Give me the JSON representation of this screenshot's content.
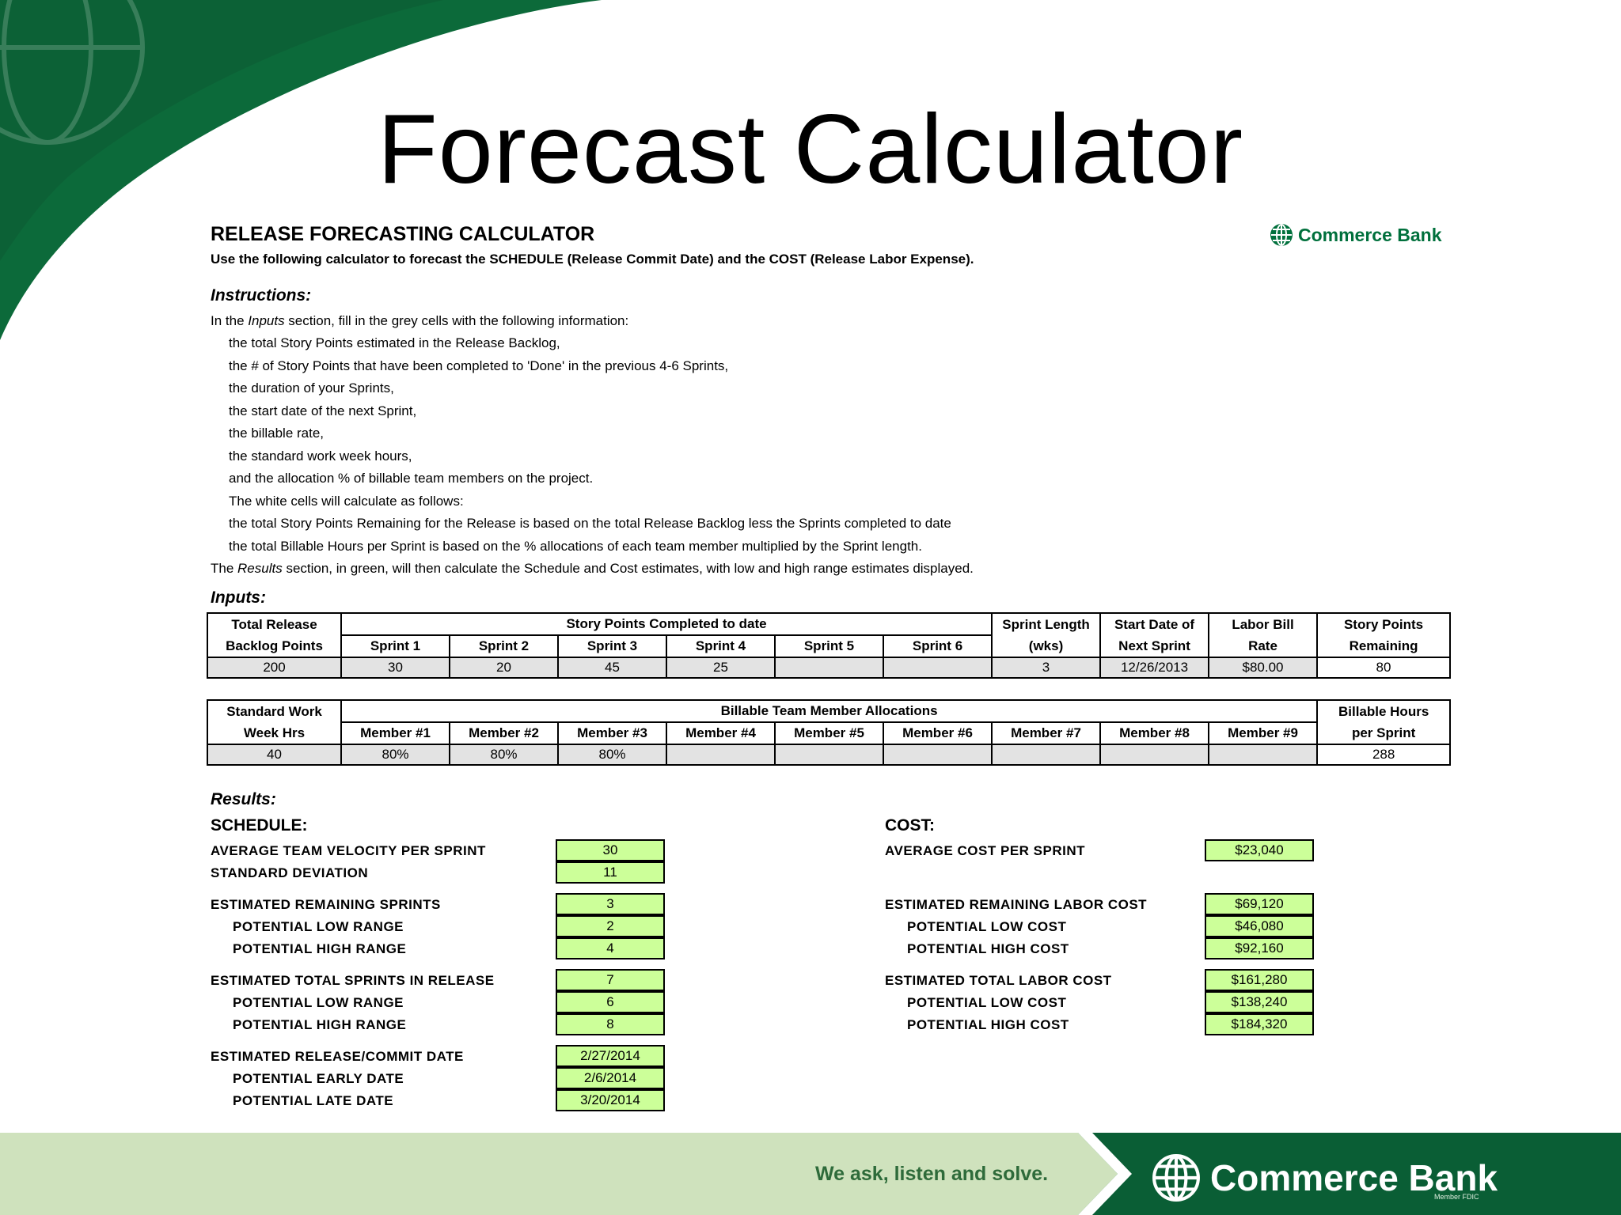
{
  "slide_title": "Forecast Calculator",
  "calculator": {
    "title": "RELEASE FORECASTING CALCULATOR",
    "subtitle": "Use the following calculator to forecast the SCHEDULE (Release Commit Date) and the COST (Release Labor Expense).",
    "logo_text": "Commerce Bank"
  },
  "instructions": {
    "heading": "Instructions:",
    "intro_prefix": "In the ",
    "intro_italic": "Inputs",
    "intro_suffix": " section, fill in the grey cells with the following information:",
    "lines": [
      "the total Story Points estimated in the Release Backlog,",
      "the # of Story Points that have been completed to 'Done' in the previous 4-6 Sprints,",
      "the duration of your Sprints,",
      "the start date of the next Sprint,",
      "the billable rate,",
      "the standard work week hours,",
      "and the allocation % of billable team members on the project.",
      "The white cells will calculate as follows:",
      "the total Story Points Remaining for the Release is based on the total Release Backlog less the Sprints completed to date",
      "the total Billable Hours per Sprint is based on the % allocations of each team member multiplied by the Sprint length."
    ],
    "results_prefix": "The ",
    "results_italic": "Results",
    "results_suffix": " section, in green, will then calculate the Schedule and Cost estimates, with low and high range estimates displayed."
  },
  "inputs": {
    "heading": "Inputs:",
    "table1": {
      "h_total_1": "Total Release",
      "h_total_2": "Backlog Points",
      "h_completed": "Story Points Completed to date",
      "sprints": [
        "Sprint 1",
        "Sprint 2",
        "Sprint 3",
        "Sprint 4",
        "Sprint 5",
        "Sprint 6"
      ],
      "h_length_1": "Sprint Length",
      "h_length_2": "(wks)",
      "h_start_1": "Start Date of",
      "h_start_2": "Next Sprint",
      "h_rate_1": "Labor Bill",
      "h_rate_2": "Rate",
      "h_remaining_1": "Story Points",
      "h_remaining_2": "Remaining",
      "values": {
        "total": "200",
        "sprints": [
          "30",
          "20",
          "45",
          "25",
          "",
          ""
        ],
        "length": "3",
        "start": "12/26/2013",
        "rate": "$80.00",
        "remaining": "80"
      }
    },
    "table2": {
      "h_week_1": "Standard Work",
      "h_week_2": "Week Hrs",
      "h_alloc": "Billable Team Member Allocations",
      "members": [
        "Member #1",
        "Member #2",
        "Member #3",
        "Member #4",
        "Member #5",
        "Member #6",
        "Member #7",
        "Member #8",
        "Member #9"
      ],
      "h_hours_1": "Billable Hours",
      "h_hours_2": "per Sprint",
      "values": {
        "week": "40",
        "members": [
          "80%",
          "80%",
          "80%",
          "",
          "",
          "",
          "",
          "",
          ""
        ],
        "hours": "288"
      }
    }
  },
  "results": {
    "heading": "Results:",
    "schedule": {
      "heading": "SCHEDULE:",
      "rows": [
        {
          "label": "AVERAGE TEAM VELOCITY PER SPRINT",
          "value": "30"
        },
        {
          "label": "STANDARD  DEVIATION",
          "value": "11"
        },
        {
          "label": "ESTIMATED REMAINING SPRINTS",
          "value": "3"
        },
        {
          "label": "POTENTIAL LOW RANGE",
          "value": "2"
        },
        {
          "label": "POTENTIAL HIGH RANGE",
          "value": "4"
        },
        {
          "label": "ESTIMATED TOTAL SPRINTS IN RELEASE",
          "value": "7"
        },
        {
          "label": "POTENTIAL LOW RANGE",
          "value": "6"
        },
        {
          "label": "POTENTIAL HIGH RANGE",
          "value": "8"
        },
        {
          "label": "ESTIMATED RELEASE/COMMIT DATE",
          "value": "2/27/2014"
        },
        {
          "label": "POTENTIAL EARLY DATE",
          "value": "2/6/2014"
        },
        {
          "label": "POTENTIAL LATE DATE",
          "value": "3/20/2014"
        }
      ]
    },
    "cost": {
      "heading": "COST:",
      "rows": [
        {
          "label": "AVERAGE COST PER SPRINT",
          "value": "$23,040"
        },
        {
          "label": "ESTIMATED REMAINING LABOR COST",
          "value": "$69,120"
        },
        {
          "label": "POTENTIAL LOW COST",
          "value": "$46,080"
        },
        {
          "label": "POTENTIAL HIGH COST",
          "value": "$92,160"
        },
        {
          "label": "ESTIMATED TOTAL LABOR COST",
          "value": "$161,280"
        },
        {
          "label": "POTENTIAL LOW COST",
          "value": "$138,240"
        },
        {
          "label": "POTENTIAL HIGH COST",
          "value": "$184,320"
        }
      ]
    }
  },
  "footer": {
    "tagline": "We ask, listen and solve.",
    "logo_text": "Commerce Bank",
    "fdic": "Member FDIC"
  },
  "colors": {
    "brand_green": "#00703c",
    "result_fill": "#ccff99",
    "input_fill": "#e3e3e3"
  }
}
